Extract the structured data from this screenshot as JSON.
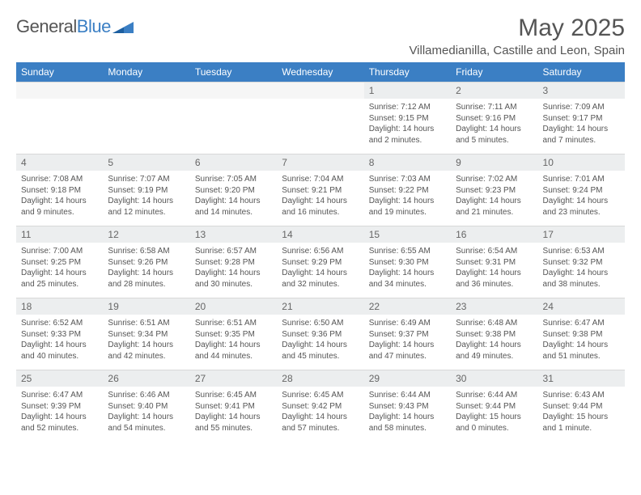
{
  "logo": {
    "word1": "General",
    "word2": "Blue"
  },
  "title": "May 2025",
  "location": "Villamedianilla, Castille and Leon, Spain",
  "colors": {
    "header_bg": "#3b7fc4",
    "header_text": "#ffffff",
    "daynum_bg": "#eceeef",
    "text": "#555555",
    "grid": "#d8d8d8"
  },
  "day_headers": [
    "Sunday",
    "Monday",
    "Tuesday",
    "Wednesday",
    "Thursday",
    "Friday",
    "Saturday"
  ],
  "weeks": [
    [
      null,
      null,
      null,
      null,
      {
        "n": "1",
        "sr": "7:12 AM",
        "ss": "9:15 PM",
        "dl": "14 hours and 2 minutes."
      },
      {
        "n": "2",
        "sr": "7:11 AM",
        "ss": "9:16 PM",
        "dl": "14 hours and 5 minutes."
      },
      {
        "n": "3",
        "sr": "7:09 AM",
        "ss": "9:17 PM",
        "dl": "14 hours and 7 minutes."
      }
    ],
    [
      {
        "n": "4",
        "sr": "7:08 AM",
        "ss": "9:18 PM",
        "dl": "14 hours and 9 minutes."
      },
      {
        "n": "5",
        "sr": "7:07 AM",
        "ss": "9:19 PM",
        "dl": "14 hours and 12 minutes."
      },
      {
        "n": "6",
        "sr": "7:05 AM",
        "ss": "9:20 PM",
        "dl": "14 hours and 14 minutes."
      },
      {
        "n": "7",
        "sr": "7:04 AM",
        "ss": "9:21 PM",
        "dl": "14 hours and 16 minutes."
      },
      {
        "n": "8",
        "sr": "7:03 AM",
        "ss": "9:22 PM",
        "dl": "14 hours and 19 minutes."
      },
      {
        "n": "9",
        "sr": "7:02 AM",
        "ss": "9:23 PM",
        "dl": "14 hours and 21 minutes."
      },
      {
        "n": "10",
        "sr": "7:01 AM",
        "ss": "9:24 PM",
        "dl": "14 hours and 23 minutes."
      }
    ],
    [
      {
        "n": "11",
        "sr": "7:00 AM",
        "ss": "9:25 PM",
        "dl": "14 hours and 25 minutes."
      },
      {
        "n": "12",
        "sr": "6:58 AM",
        "ss": "9:26 PM",
        "dl": "14 hours and 28 minutes."
      },
      {
        "n": "13",
        "sr": "6:57 AM",
        "ss": "9:28 PM",
        "dl": "14 hours and 30 minutes."
      },
      {
        "n": "14",
        "sr": "6:56 AM",
        "ss": "9:29 PM",
        "dl": "14 hours and 32 minutes."
      },
      {
        "n": "15",
        "sr": "6:55 AM",
        "ss": "9:30 PM",
        "dl": "14 hours and 34 minutes."
      },
      {
        "n": "16",
        "sr": "6:54 AM",
        "ss": "9:31 PM",
        "dl": "14 hours and 36 minutes."
      },
      {
        "n": "17",
        "sr": "6:53 AM",
        "ss": "9:32 PM",
        "dl": "14 hours and 38 minutes."
      }
    ],
    [
      {
        "n": "18",
        "sr": "6:52 AM",
        "ss": "9:33 PM",
        "dl": "14 hours and 40 minutes."
      },
      {
        "n": "19",
        "sr": "6:51 AM",
        "ss": "9:34 PM",
        "dl": "14 hours and 42 minutes."
      },
      {
        "n": "20",
        "sr": "6:51 AM",
        "ss": "9:35 PM",
        "dl": "14 hours and 44 minutes."
      },
      {
        "n": "21",
        "sr": "6:50 AM",
        "ss": "9:36 PM",
        "dl": "14 hours and 45 minutes."
      },
      {
        "n": "22",
        "sr": "6:49 AM",
        "ss": "9:37 PM",
        "dl": "14 hours and 47 minutes."
      },
      {
        "n": "23",
        "sr": "6:48 AM",
        "ss": "9:38 PM",
        "dl": "14 hours and 49 minutes."
      },
      {
        "n": "24",
        "sr": "6:47 AM",
        "ss": "9:38 PM",
        "dl": "14 hours and 51 minutes."
      }
    ],
    [
      {
        "n": "25",
        "sr": "6:47 AM",
        "ss": "9:39 PM",
        "dl": "14 hours and 52 minutes."
      },
      {
        "n": "26",
        "sr": "6:46 AM",
        "ss": "9:40 PM",
        "dl": "14 hours and 54 minutes."
      },
      {
        "n": "27",
        "sr": "6:45 AM",
        "ss": "9:41 PM",
        "dl": "14 hours and 55 minutes."
      },
      {
        "n": "28",
        "sr": "6:45 AM",
        "ss": "9:42 PM",
        "dl": "14 hours and 57 minutes."
      },
      {
        "n": "29",
        "sr": "6:44 AM",
        "ss": "9:43 PM",
        "dl": "14 hours and 58 minutes."
      },
      {
        "n": "30",
        "sr": "6:44 AM",
        "ss": "9:44 PM",
        "dl": "15 hours and 0 minutes."
      },
      {
        "n": "31",
        "sr": "6:43 AM",
        "ss": "9:44 PM",
        "dl": "15 hours and 1 minute."
      }
    ]
  ],
  "labels": {
    "sunrise": "Sunrise:",
    "sunset": "Sunset:",
    "daylight": "Daylight:"
  }
}
